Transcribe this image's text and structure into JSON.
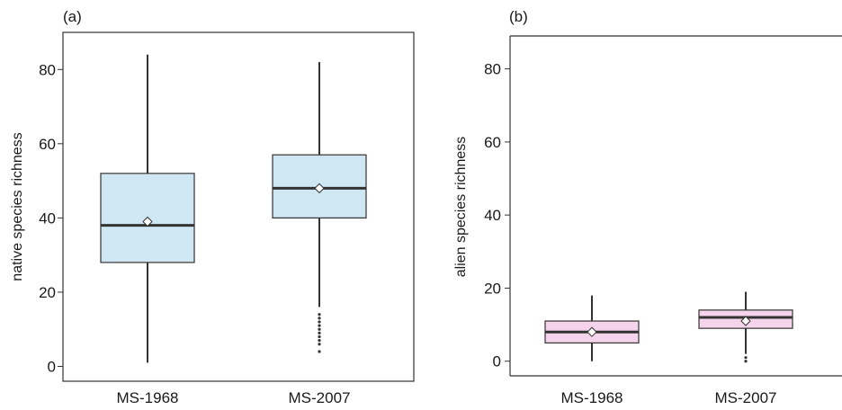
{
  "chart_data": [
    {
      "type": "box",
      "panel_label": "(a)",
      "ylabel": "native species richness",
      "ylim": [
        -4,
        90
      ],
      "yticks": [
        0,
        20,
        40,
        60,
        80
      ],
      "box_color": "#cfe6f3",
      "categories": [
        "MS-1968",
        "MS-2007"
      ],
      "boxes": [
        {
          "category": "MS-1968",
          "whisker_low": 1,
          "q1": 28,
          "median": 38,
          "q3": 52,
          "whisker_high": 84,
          "mean": 39,
          "outliers": []
        },
        {
          "category": "MS-2007",
          "whisker_low": 16,
          "q1": 40,
          "median": 48,
          "q3": 57,
          "whisker_high": 82,
          "mean": 48,
          "outliers": [
            4,
            6,
            7,
            8,
            9,
            10,
            11,
            12,
            13,
            14
          ]
        }
      ]
    },
    {
      "type": "box",
      "panel_label": "(b)",
      "ylabel": "alien species richness",
      "ylim": [
        -4,
        89
      ],
      "yticks": [
        0,
        20,
        40,
        60,
        80
      ],
      "box_color": "#f5d3ea",
      "categories": [
        "MS-1968",
        "MS-2007"
      ],
      "boxes": [
        {
          "category": "MS-1968",
          "whisker_low": 0,
          "q1": 5,
          "median": 8,
          "q3": 11,
          "whisker_high": 18,
          "mean": 8,
          "outliers": []
        },
        {
          "category": "MS-2007",
          "whisker_low": 2,
          "q1": 9,
          "median": 12,
          "q3": 14,
          "whisker_high": 19,
          "mean": 11,
          "outliers": [
            0,
            1
          ]
        }
      ]
    }
  ]
}
